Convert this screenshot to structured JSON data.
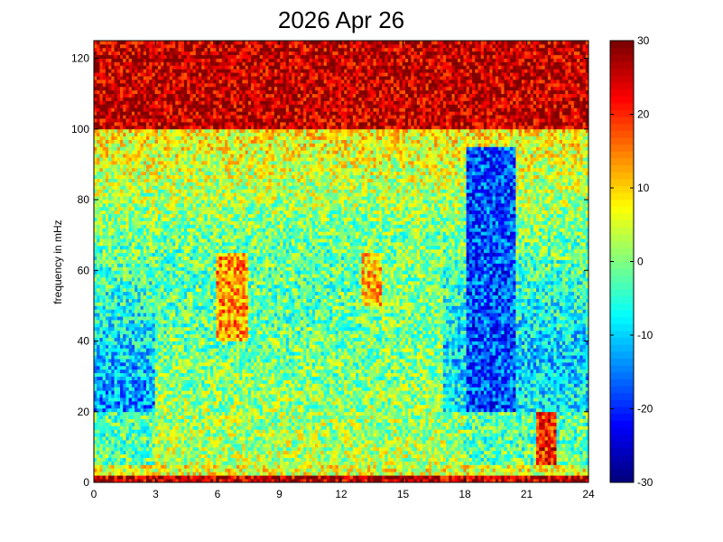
{
  "chart_data": {
    "type": "heatmap",
    "title": "2026 Apr 26",
    "xlabel": "",
    "ylabel": "frequency in mHz",
    "xlim": [
      0,
      24
    ],
    "ylim": [
      0,
      125
    ],
    "xticks": [
      "0",
      "3",
      "6",
      "9",
      "12",
      "15",
      "18",
      "21",
      "24"
    ],
    "yticks": [
      "0",
      "20",
      "40",
      "60",
      "80",
      "100",
      "120"
    ],
    "colorbar": {
      "range": [
        -30,
        30
      ],
      "ticks": [
        "30",
        "20",
        "10",
        "0",
        "-10",
        "-20",
        "-30"
      ],
      "colormap": "jet"
    },
    "grid": false,
    "description_of_values": "spectrogram power, color scale -30 to 30",
    "features": [
      {
        "x_range": [
          0,
          3
        ],
        "y_range": [
          0,
          20
        ],
        "level": 0
      },
      {
        "x_range": [
          3,
          13
        ],
        "y_range": [
          0,
          75
        ],
        "level": 2
      },
      {
        "x_range": [
          6,
          7.5
        ],
        "y_range": [
          40,
          65
        ],
        "level": 18
      },
      {
        "x_range": [
          13,
          17
        ],
        "y_range": [
          0,
          70
        ],
        "level": 4
      },
      {
        "x_range": [
          13,
          14
        ],
        "y_range": [
          50,
          65
        ],
        "level": 15
      },
      {
        "x_range": [
          21.5,
          22.5
        ],
        "y_range": [
          5,
          20
        ],
        "level": 25
      },
      {
        "x_range": [
          0,
          24
        ],
        "y_range": [
          2,
          5
        ],
        "level": 10
      },
      {
        "x_range": [
          0,
          24
        ],
        "y_range": [
          0,
          2
        ],
        "level": 30
      },
      {
        "x_range": [
          0,
          24
        ],
        "y_range": [
          100,
          125
        ],
        "level": 30
      }
    ]
  },
  "colors": {
    "jet": [
      "#00008f",
      "#0000ff",
      "#00ffff",
      "#ffff00",
      "#ff0000",
      "#800000"
    ]
  }
}
